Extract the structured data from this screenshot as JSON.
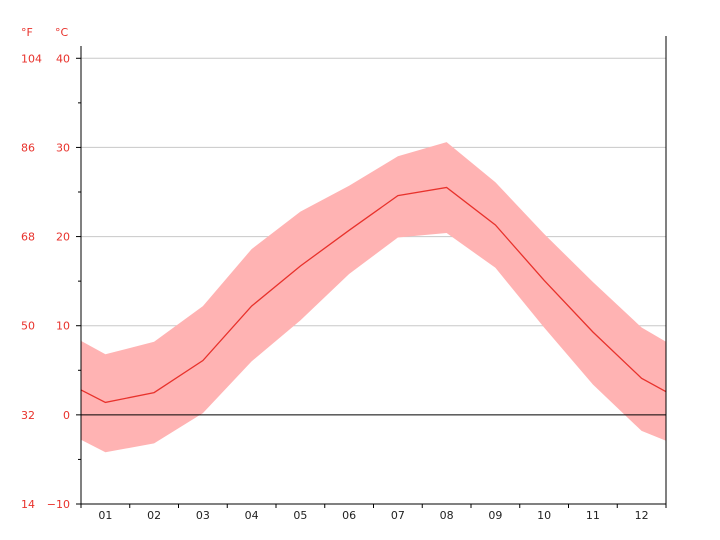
{
  "chart_data": {
    "type": "area",
    "title": "",
    "xlabel": "",
    "ylabel": "",
    "categories": [
      "01",
      "02",
      "03",
      "04",
      "05",
      "06",
      "07",
      "08",
      "09",
      "10",
      "11",
      "12"
    ],
    "units": {
      "fahrenheit": "°F",
      "celsius": "°C"
    },
    "ylim": [
      -10,
      42.5
    ],
    "yticks_c": [
      "40",
      "30",
      "20",
      "10",
      "0",
      "−10"
    ],
    "yticks_f": [
      "104",
      "86",
      "68",
      "50",
      "32",
      "14"
    ],
    "grid": true,
    "series": [
      {
        "role": "average",
        "values": [
          1.4,
          2.5,
          6.1,
          12.2,
          16.7,
          20.7,
          24.6,
          25.5,
          21.3,
          15.1,
          9.3,
          4.1
        ]
      },
      {
        "role": "max",
        "values": [
          6.8,
          8.2,
          12.2,
          18.6,
          22.8,
          25.7,
          29.0,
          30.6,
          26.1,
          20.3,
          14.9,
          9.8
        ]
      },
      {
        "role": "min",
        "values": [
          -4.2,
          -3.2,
          0.2,
          6.0,
          10.6,
          15.8,
          19.9,
          20.4,
          16.5,
          9.8,
          3.4,
          -1.8
        ]
      }
    ],
    "edge_values": {
      "left": {
        "avg": 2.8,
        "max": 8.3,
        "min": -2.8
      },
      "right": {
        "avg": 2.6,
        "max": 8.2,
        "min": -2.9
      }
    },
    "colors": {
      "band": "#ffb3b3",
      "line": "#e8322c",
      "grid": "#c8c8c8",
      "zero_line": "#000000",
      "axis": "#000000",
      "tick_label": "#e8322c",
      "x_label": "#222222"
    }
  }
}
